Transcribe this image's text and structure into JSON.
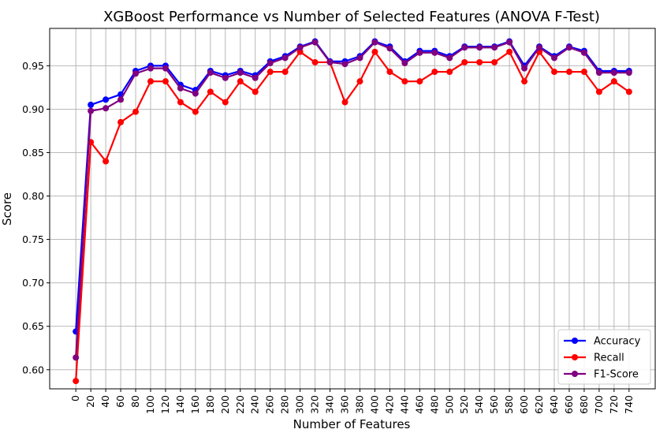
{
  "chart_data": {
    "type": "line",
    "title": "XGBoost Performance vs Number of Selected Features (ANOVA F-Test)",
    "xlabel": "Number of Features",
    "ylabel": "Score",
    "x": [
      0,
      20,
      40,
      60,
      80,
      100,
      120,
      140,
      160,
      180,
      200,
      220,
      240,
      260,
      280,
      300,
      320,
      340,
      360,
      380,
      400,
      420,
      440,
      460,
      480,
      500,
      520,
      540,
      560,
      580,
      600,
      620,
      640,
      660,
      680,
      700,
      720,
      740
    ],
    "xticks": [
      "0",
      "20",
      "40",
      "60",
      "80",
      "100",
      "120",
      "140",
      "160",
      "180",
      "200",
      "220",
      "240",
      "260",
      "280",
      "300",
      "320",
      "340",
      "360",
      "380",
      "400",
      "420",
      "440",
      "460",
      "480",
      "500",
      "520",
      "540",
      "560",
      "580",
      "600",
      "620",
      "640",
      "660",
      "680",
      "700",
      "720",
      "740"
    ],
    "ylim": [
      0.578,
      0.993
    ],
    "xlim": [
      -35,
      775
    ],
    "yticks": [
      "0.60",
      "0.65",
      "0.70",
      "0.75",
      "0.80",
      "0.85",
      "0.90",
      "0.95"
    ],
    "ytick_values": [
      0.6,
      0.65,
      0.7,
      0.75,
      0.8,
      0.85,
      0.9,
      0.95
    ],
    "grid": true,
    "legend_position": "lower-right",
    "series": [
      {
        "name": "Accuracy",
        "color": "#0000ff",
        "values": [
          0.644,
          0.905,
          0.911,
          0.917,
          0.944,
          0.95,
          0.95,
          0.928,
          0.922,
          0.944,
          0.939,
          0.944,
          0.939,
          0.955,
          0.961,
          0.972,
          0.978,
          0.955,
          0.955,
          0.961,
          0.978,
          0.972,
          0.955,
          0.967,
          0.967,
          0.961,
          0.972,
          0.972,
          0.972,
          0.978,
          0.95,
          0.972,
          0.961,
          0.972,
          0.967,
          0.944,
          0.944,
          0.944
        ]
      },
      {
        "name": "Recall",
        "color": "#ff0000",
        "values": [
          0.587,
          0.862,
          0.84,
          0.885,
          0.897,
          0.932,
          0.932,
          0.908,
          0.897,
          0.92,
          0.908,
          0.932,
          0.92,
          0.943,
          0.943,
          0.966,
          0.954,
          0.954,
          0.908,
          0.932,
          0.966,
          0.943,
          0.932,
          0.932,
          0.943,
          0.943,
          0.954,
          0.954,
          0.954,
          0.966,
          0.932,
          0.966,
          0.943,
          0.943,
          0.943,
          0.92,
          0.932,
          0.92
        ]
      },
      {
        "name": "F1-Score",
        "color": "#800080",
        "values": [
          0.614,
          0.898,
          0.901,
          0.911,
          0.941,
          0.947,
          0.947,
          0.924,
          0.918,
          0.942,
          0.936,
          0.942,
          0.936,
          0.953,
          0.959,
          0.971,
          0.977,
          0.954,
          0.952,
          0.959,
          0.977,
          0.97,
          0.953,
          0.965,
          0.965,
          0.959,
          0.971,
          0.971,
          0.971,
          0.977,
          0.947,
          0.971,
          0.959,
          0.971,
          0.965,
          0.942,
          0.942,
          0.942
        ]
      }
    ]
  }
}
